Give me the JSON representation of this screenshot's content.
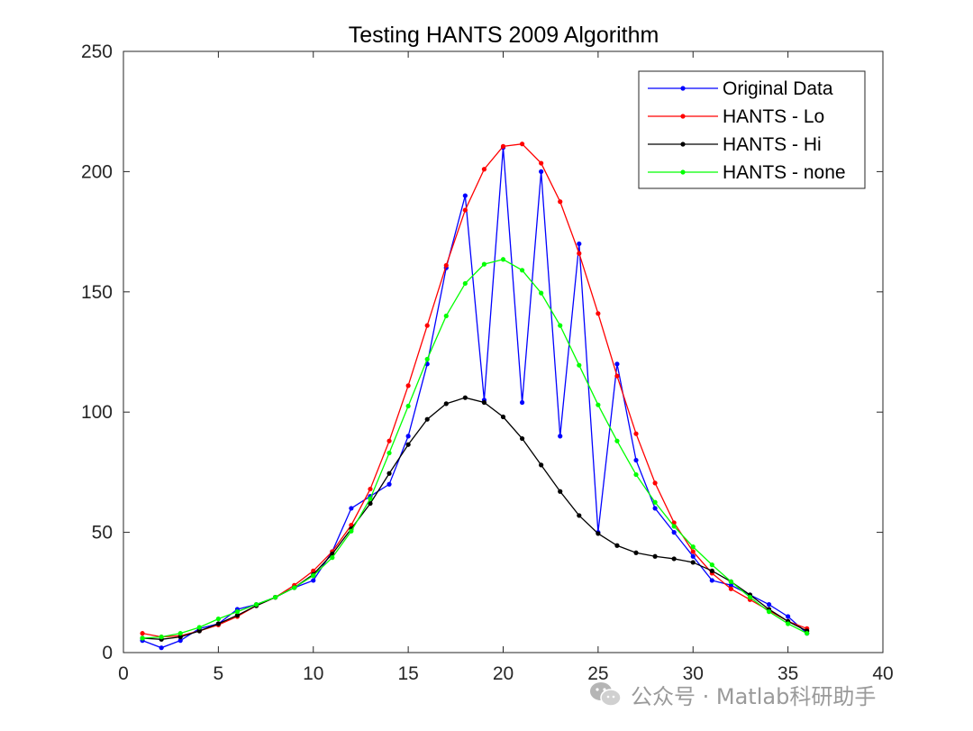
{
  "chart_data": {
    "type": "line",
    "title": "Testing HANTS 2009 Algorithm",
    "xlabel": "",
    "ylabel": "",
    "xlim": [
      0,
      40
    ],
    "ylim": [
      0,
      250
    ],
    "xticks": [
      0,
      5,
      10,
      15,
      20,
      25,
      30,
      35,
      40
    ],
    "yticks": [
      0,
      50,
      100,
      150,
      200,
      250
    ],
    "legend_position": "top-right",
    "x": [
      1,
      2,
      3,
      4,
      5,
      6,
      7,
      8,
      9,
      10,
      11,
      12,
      13,
      14,
      15,
      16,
      17,
      18,
      19,
      20,
      21,
      22,
      23,
      24,
      25,
      26,
      27,
      28,
      29,
      30,
      31,
      32,
      33,
      34,
      35,
      36
    ],
    "series": [
      {
        "name": "Original Data",
        "color": "#0000ff",
        "values": [
          5,
          2,
          5,
          10,
          12,
          18,
          20,
          23,
          27,
          30,
          42,
          60,
          65,
          70,
          90,
          120,
          160,
          190,
          105,
          210,
          104,
          200,
          90,
          170,
          50,
          120,
          80,
          60,
          50,
          40,
          30,
          28,
          24,
          20,
          15,
          8
        ]
      },
      {
        "name": "HANTS - Lo",
        "color": "#ff0000",
        "values": [
          8,
          6.5,
          7,
          9,
          11.5,
          15,
          19.5,
          23,
          28,
          34,
          42,
          53,
          68,
          88,
          111,
          136,
          161,
          184,
          201,
          210.5,
          211.5,
          203.5,
          187.5,
          166,
          141,
          115,
          91,
          70.5,
          54,
          42,
          33,
          26.5,
          22,
          17.5,
          13,
          10
        ]
      },
      {
        "name": "HANTS - Hi",
        "color": "#000000",
        "values": [
          6,
          5.5,
          6.5,
          9,
          12,
          15.5,
          19.5,
          23,
          27,
          32.5,
          41,
          51.5,
          62,
          74.5,
          86.5,
          97,
          103.5,
          106,
          104,
          98,
          89,
          78,
          67,
          57,
          49.5,
          44.5,
          41.5,
          40,
          39,
          37.5,
          34,
          29.5,
          24,
          18,
          13,
          9
        ]
      },
      {
        "name": "HANTS - none",
        "color": "#00ff00",
        "values": [
          6,
          6.5,
          8,
          10.5,
          14,
          17,
          20,
          23,
          27,
          32,
          39.5,
          50.5,
          64,
          83,
          102.5,
          122,
          140,
          153.5,
          161.5,
          163.5,
          159,
          149.5,
          136,
          119.5,
          103,
          88,
          74,
          62.5,
          52.5,
          44,
          36.5,
          29.5,
          23,
          17,
          12,
          8
        ]
      }
    ]
  },
  "watermark": {
    "icon": "wechat-icon",
    "text": "公众号 · Matlab科研助手"
  }
}
